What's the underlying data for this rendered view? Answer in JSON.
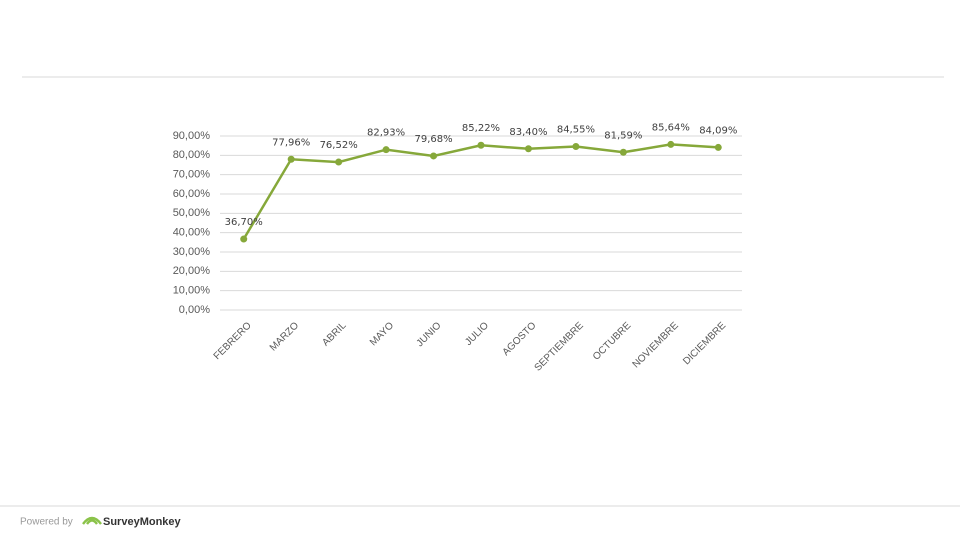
{
  "chart_data": {
    "type": "line",
    "categories": [
      "FEBRERO",
      "MARZO",
      "ABRIL",
      "MAYO",
      "JUNIO",
      "JULIO",
      "AGOSTO",
      "SEPTIEMBRE",
      "OCTUBRE",
      "NOVIEMBRE",
      "DICIEMBRE"
    ],
    "series": [
      {
        "color": "#86a83a",
        "values": [
          36.7,
          77.96,
          76.52,
          82.93,
          79.68,
          85.22,
          83.4,
          84.55,
          81.59,
          85.64,
          84.09
        ],
        "value_labels": [
          "36,70%",
          "77,96%",
          "76,52%",
          "82,93%",
          "79,68%",
          "85,22%",
          "83,40%",
          "84,55%",
          "81,59%",
          "85,64%",
          "84,09%"
        ]
      }
    ],
    "ylim": [
      0,
      90
    ],
    "yticks": [
      {
        "value": 0,
        "label": "0,00%"
      },
      {
        "value": 10,
        "label": "10,00%"
      },
      {
        "value": 20,
        "label": "20,00%"
      },
      {
        "value": 30,
        "label": "30,00%"
      },
      {
        "value": 40,
        "label": "40,00%"
      },
      {
        "value": 50,
        "label": "50,00%"
      },
      {
        "value": 60,
        "label": "60,00%"
      },
      {
        "value": 70,
        "label": "70,00%"
      },
      {
        "value": 80,
        "label": "80,00%"
      },
      {
        "value": 90,
        "label": "90,00%"
      }
    ],
    "grid": true
  },
  "footer": {
    "powered_by": "Powered by",
    "brand": "SurveyMonkey"
  }
}
